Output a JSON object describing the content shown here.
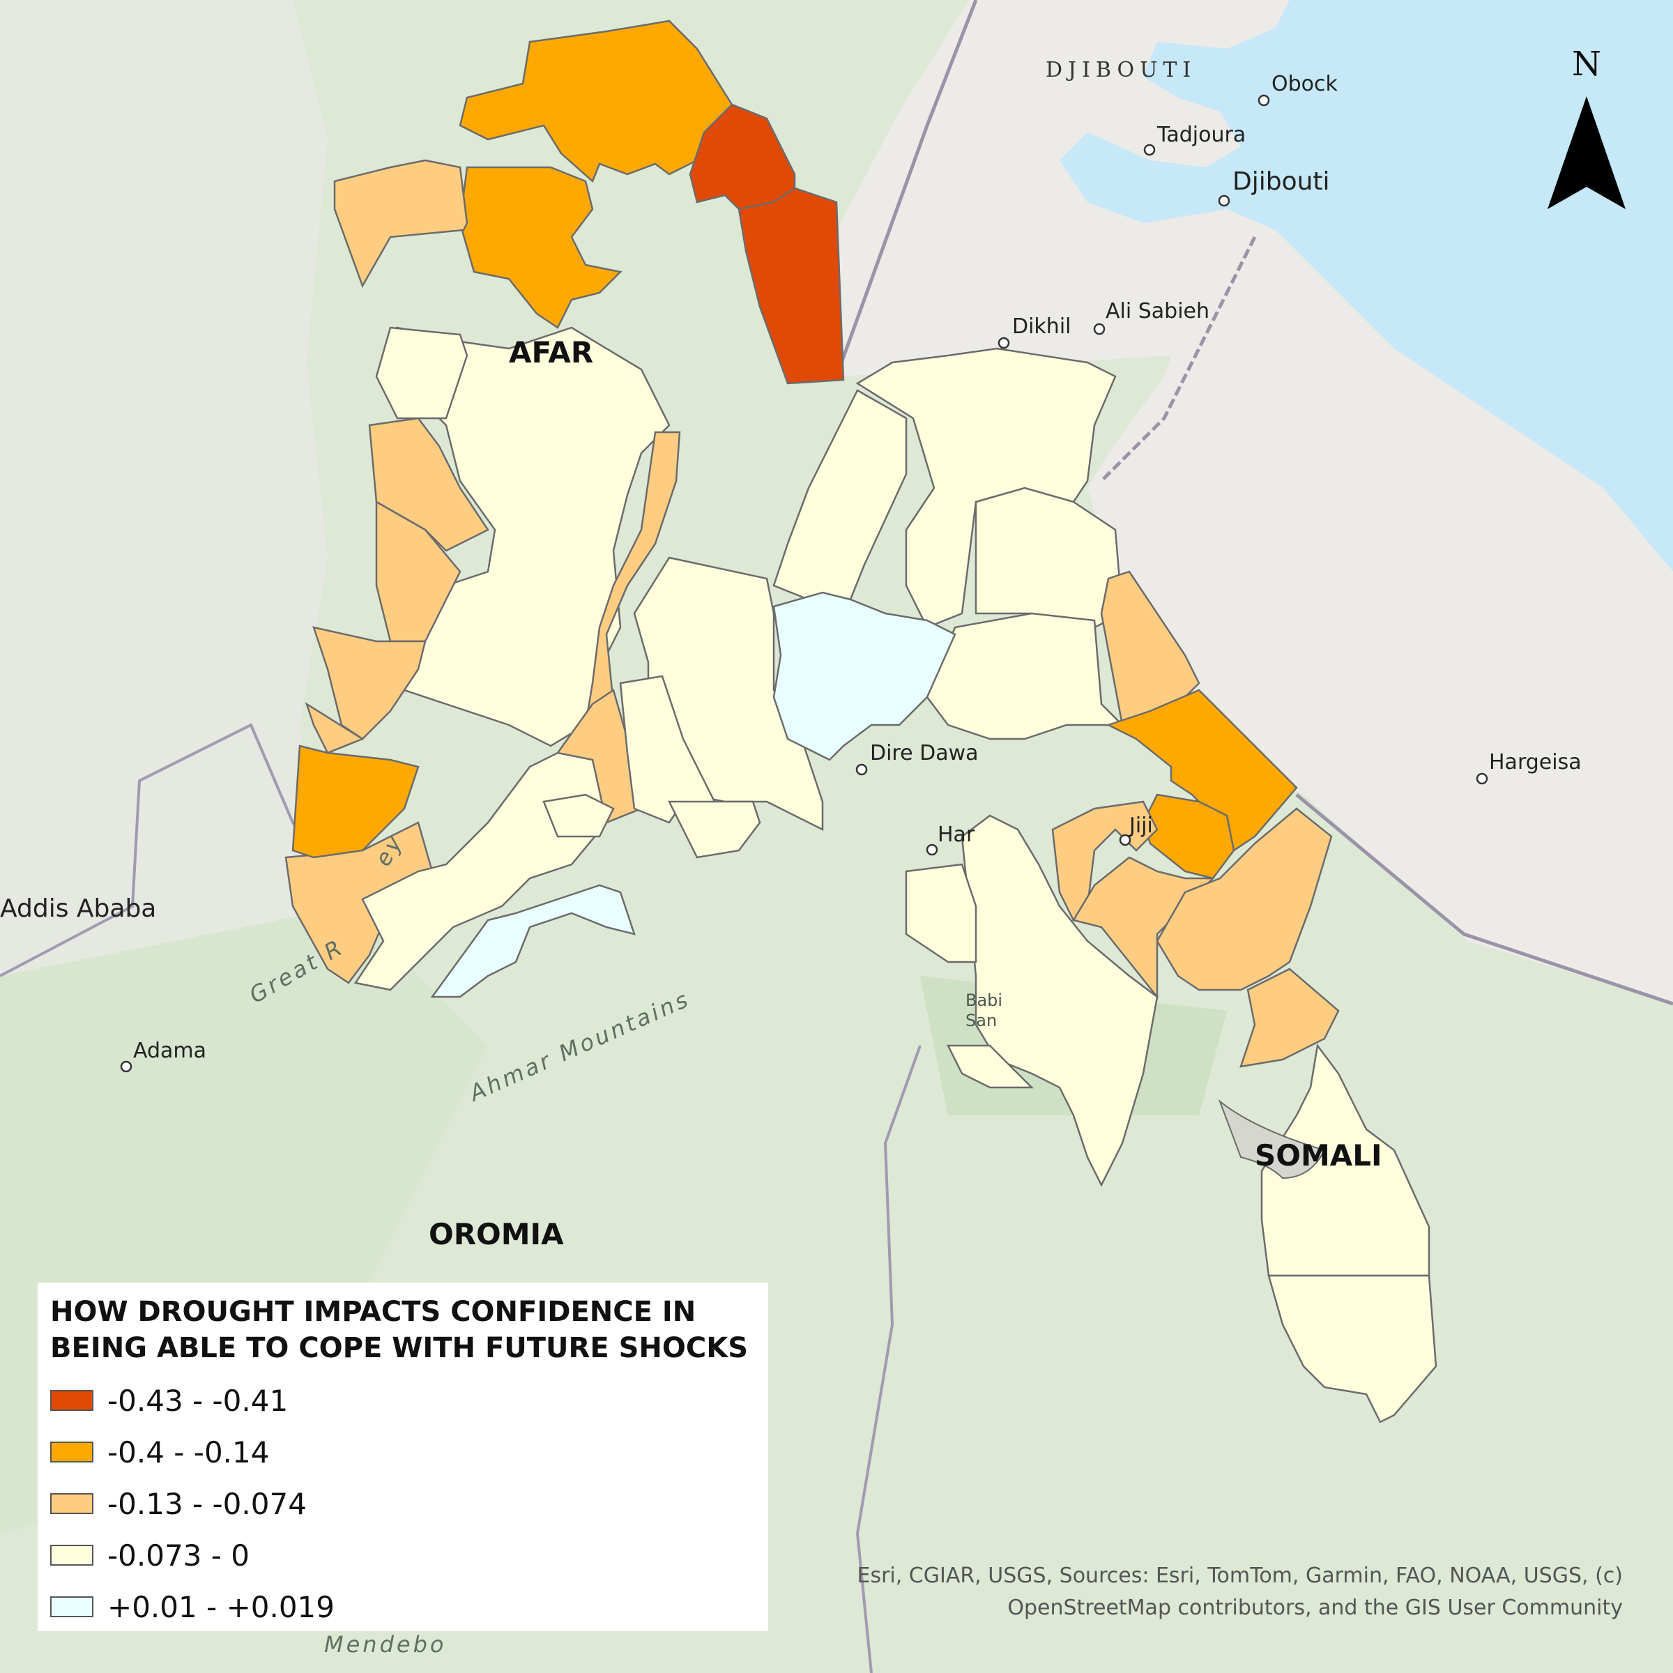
{
  "colors": {
    "class_1": "#e14a05",
    "class_2": "#ffa800",
    "class_3": "#fecd82",
    "class_4": "#ffffde",
    "class_5": "#e9feff"
  },
  "legend": {
    "title": "HOW DROUGHT IMPACTS CONFIDENCE IN BEING ABLE TO COPE WITH FUTURE SHOCKS",
    "items": [
      {
        "label": "-0.43 - -0.41"
      },
      {
        "label": "-0.4 - -0.14"
      },
      {
        "label": "-0.13 - -0.074"
      },
      {
        "label": "-0.073 - 0"
      },
      {
        "label": "+0.01 - +0.019"
      }
    ]
  },
  "regions": {
    "afar": "AFAR",
    "oromia": "OROMIA",
    "somali": "SOMALI"
  },
  "countries": {
    "djibouti": "DJIBOUTI"
  },
  "places": {
    "obock": "Obock",
    "tadjoura": "Tadjoura",
    "djibouti_city": "Djibouti",
    "dikhil": "Dikhil",
    "ali_sabieh": "Ali Sabieh",
    "hargeisa": "Hargeisa",
    "dire_dawa": "Dire Dawa",
    "harar": "Har",
    "jijiga": "Jiji",
    "addis_ababa": "Addis Ababa",
    "adama": "Adama",
    "babile": "Babi",
    "babile_2": "San",
    "mendebo": "Mendebo"
  },
  "terrain_labels": {
    "ahmar": "Ahmar Mountains",
    "great_rift": "Great R",
    "rift_valley_end": "ey"
  },
  "north_arrow": "N",
  "attribution": {
    "line1": "Esri, CGIAR, USGS, Sources:  Esri, TomTom, Garmin, FAO, NOAA, USGS, (c)",
    "line2": "OpenStreetMap contributors, and the GIS User Community"
  }
}
